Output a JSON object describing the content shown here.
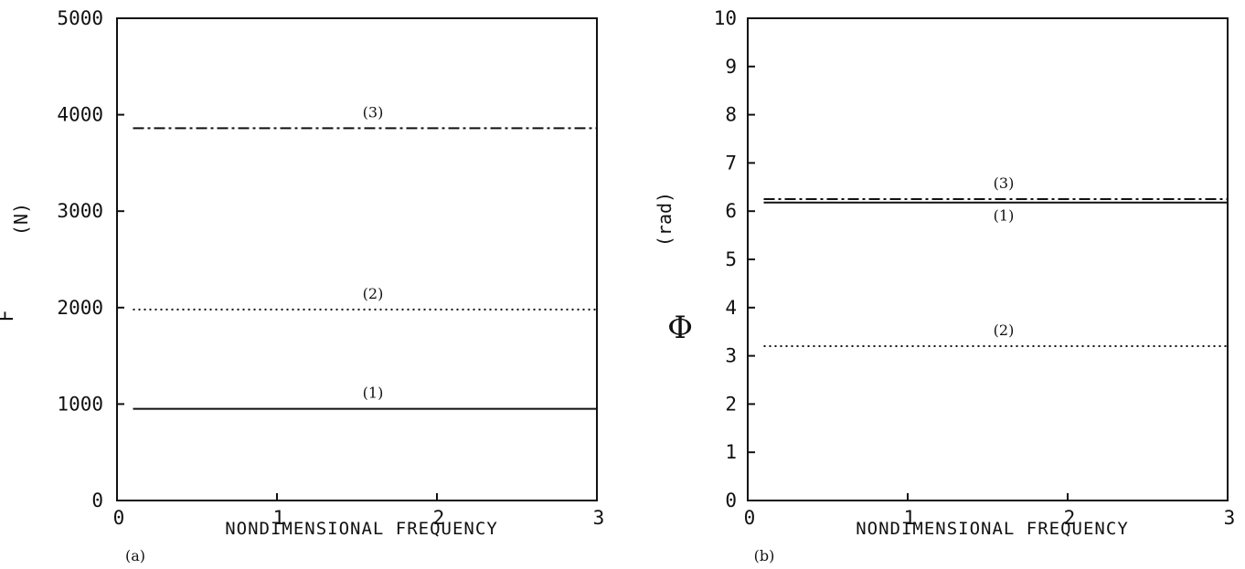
{
  "chart_data": [
    {
      "type": "line",
      "panel_label": "(a)",
      "xlabel": "NONDIMENSIONAL FREQUENCY",
      "ylabel_symbol": "F",
      "ylabel_unit": "(N)",
      "xlim": [
        0,
        3
      ],
      "ylim": [
        0,
        5000
      ],
      "xticks": [
        0,
        1,
        2,
        3
      ],
      "yticks": [
        0,
        1000,
        2000,
        3000,
        4000,
        5000
      ],
      "xtick_labels": [
        "0",
        "1",
        "2",
        "3"
      ],
      "ytick_labels": [
        "0",
        "1000",
        "2000",
        "3000",
        "4000",
        "5000"
      ],
      "grid": false,
      "series": [
        {
          "label": "(1)",
          "style": "solid",
          "x": [
            0.1,
            3
          ],
          "y": [
            950,
            950
          ]
        },
        {
          "label": "(2)",
          "style": "dotted",
          "x": [
            0.1,
            3
          ],
          "y": [
            1980,
            1980
          ]
        },
        {
          "label": "(3)",
          "style": "dashdot",
          "x": [
            0.1,
            3
          ],
          "y": [
            3860,
            3860
          ]
        }
      ]
    },
    {
      "type": "line",
      "panel_label": "(b)",
      "xlabel": "NONDIMENSIONAL FREQUENCY",
      "ylabel_symbol": "Φ",
      "ylabel_unit": "(rad)",
      "xlim": [
        0,
        3
      ],
      "ylim": [
        0,
        10
      ],
      "xticks": [
        0,
        1,
        2,
        3
      ],
      "yticks": [
        0,
        1,
        2,
        3,
        4,
        5,
        6,
        7,
        8,
        9,
        10
      ],
      "xtick_labels": [
        "0",
        "1",
        "2",
        "3"
      ],
      "ytick_labels": [
        "0",
        "1",
        "2",
        "3",
        "4",
        "5",
        "6",
        "7",
        "8",
        "9",
        "10"
      ],
      "grid": false,
      "series": [
        {
          "label": "(1)",
          "style": "solid",
          "x": [
            0.1,
            3
          ],
          "y": [
            6.18,
            6.18
          ]
        },
        {
          "label": "(2)",
          "style": "dotted",
          "x": [
            0.1,
            3
          ],
          "y": [
            3.2,
            3.2
          ]
        },
        {
          "label": "(3)",
          "style": "dashdot",
          "x": [
            0.1,
            3
          ],
          "y": [
            6.25,
            6.25
          ]
        }
      ]
    }
  ]
}
